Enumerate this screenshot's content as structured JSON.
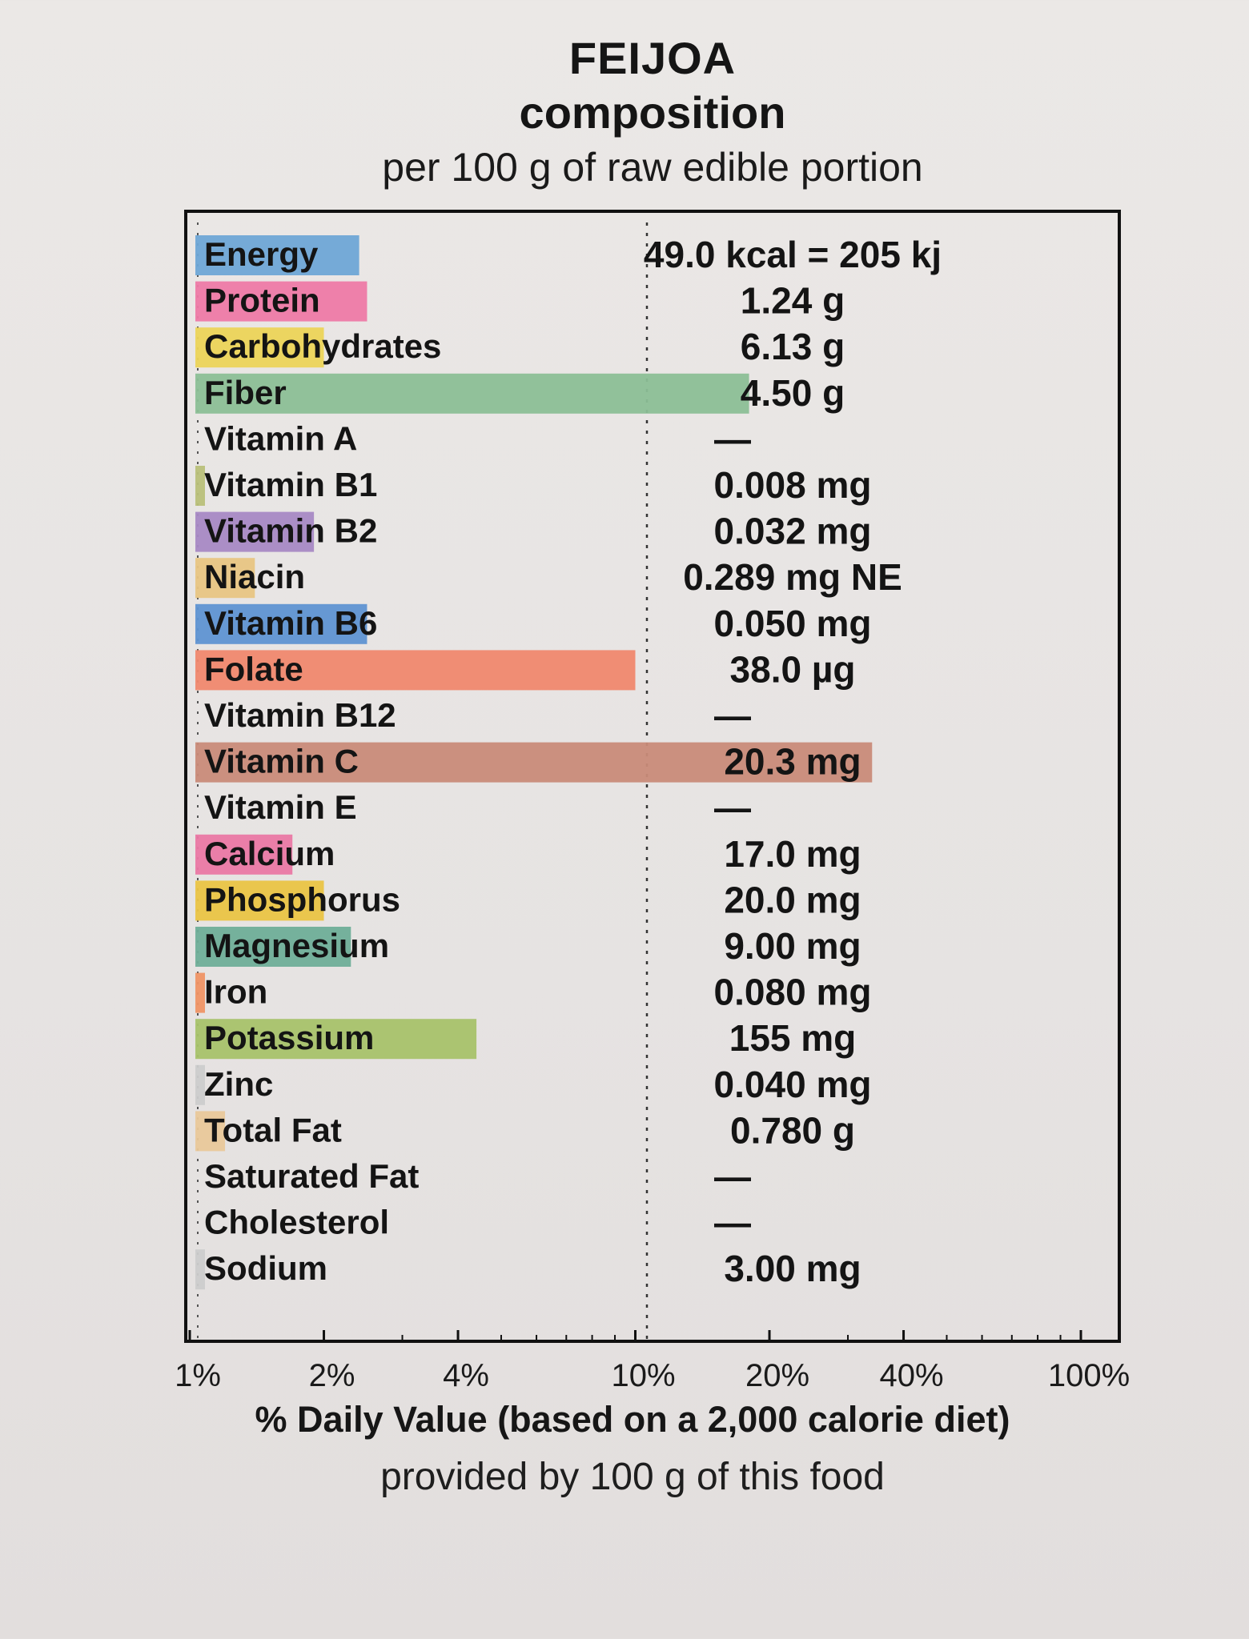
{
  "header": {
    "title_line1": "FEIJOA",
    "title_line2": "composition",
    "subtitle": "per 100 g of raw edible portion"
  },
  "footer": {
    "line1": "% Daily Value (based on a 2,000 calorie diet)",
    "line2": "provided by 100 g of this food"
  },
  "chart_data": {
    "type": "bar",
    "orientation": "horizontal",
    "x_scale": "log",
    "xlim": [
      1,
      100
    ],
    "x_ticks": [
      "1%",
      "2%",
      "4%",
      "10%",
      "20%",
      "40%",
      "100%"
    ],
    "x_tick_values": [
      1,
      2,
      4,
      10,
      20,
      40,
      100
    ],
    "xlabel": "% Daily Value (based on a 2,000 calorie diet)",
    "grid": false,
    "rows": [
      {
        "name": "Energy",
        "amount": "49.0 kcal = 205 kj",
        "dv_percent": 2.4,
        "color": "#6fa6d6"
      },
      {
        "name": "Protein",
        "amount": "1.24 g",
        "dv_percent": 2.5,
        "color": "#ee7aa6"
      },
      {
        "name": "Carbohydrates",
        "amount": "6.13 g",
        "dv_percent": 2.0,
        "color": "#ecd458"
      },
      {
        "name": "Fiber",
        "amount": "4.50 g",
        "dv_percent": 18,
        "color": "#8cbf96"
      },
      {
        "name": "Vitamin A",
        "amount": "—",
        "dv_percent": 0,
        "color": "#cccccc"
      },
      {
        "name": "Vitamin B1",
        "amount": "0.008 mg",
        "dv_percent": 0.5,
        "color": "#b9c07a"
      },
      {
        "name": "Vitamin B2",
        "amount": "0.032 mg",
        "dv_percent": 1.9,
        "color": "#a889c4"
      },
      {
        "name": "Niacin",
        "amount": "0.289 mg NE",
        "dv_percent": 1.4,
        "color": "#e8c583"
      },
      {
        "name": "Vitamin B6",
        "amount": "0.050 mg",
        "dv_percent": 2.5,
        "color": "#5f94d2"
      },
      {
        "name": "Folate",
        "amount": "38.0 µg",
        "dv_percent": 10,
        "color": "#f0886e"
      },
      {
        "name": "Vitamin B12",
        "amount": "—",
        "dv_percent": 0,
        "color": "#cccccc"
      },
      {
        "name": "Vitamin C",
        "amount": "20.3 mg",
        "dv_percent": 34,
        "color": "#c98b79"
      },
      {
        "name": "Vitamin E",
        "amount": "—",
        "dv_percent": 0,
        "color": "#cccccc"
      },
      {
        "name": "Calcium",
        "amount": "17.0 mg",
        "dv_percent": 1.7,
        "color": "#ea78a4"
      },
      {
        "name": "Phosphorus",
        "amount": "20.0 mg",
        "dv_percent": 2.0,
        "color": "#eac444"
      },
      {
        "name": "Magnesium",
        "amount": "9.00 mg",
        "dv_percent": 2.3,
        "color": "#6fae98"
      },
      {
        "name": "Iron",
        "amount": "0.080 mg",
        "dv_percent": 0.4,
        "color": "#ef9365"
      },
      {
        "name": "Potassium",
        "amount": "155 mg",
        "dv_percent": 4.4,
        "color": "#a8c26a"
      },
      {
        "name": "Zinc",
        "amount": "0.040 mg",
        "dv_percent": 0.3,
        "color": "#cccccc"
      },
      {
        "name": "Total Fat",
        "amount": "0.780 g",
        "dv_percent": 1.2,
        "color": "#e9c89a"
      },
      {
        "name": "Saturated Fat",
        "amount": "—",
        "dv_percent": 0,
        "color": "#cccccc"
      },
      {
        "name": "Cholesterol",
        "amount": "—",
        "dv_percent": 0,
        "color": "#cccccc"
      },
      {
        "name": "Sodium",
        "amount": "3.00 mg",
        "dv_percent": 0.1,
        "color": "#cccccc"
      }
    ]
  }
}
